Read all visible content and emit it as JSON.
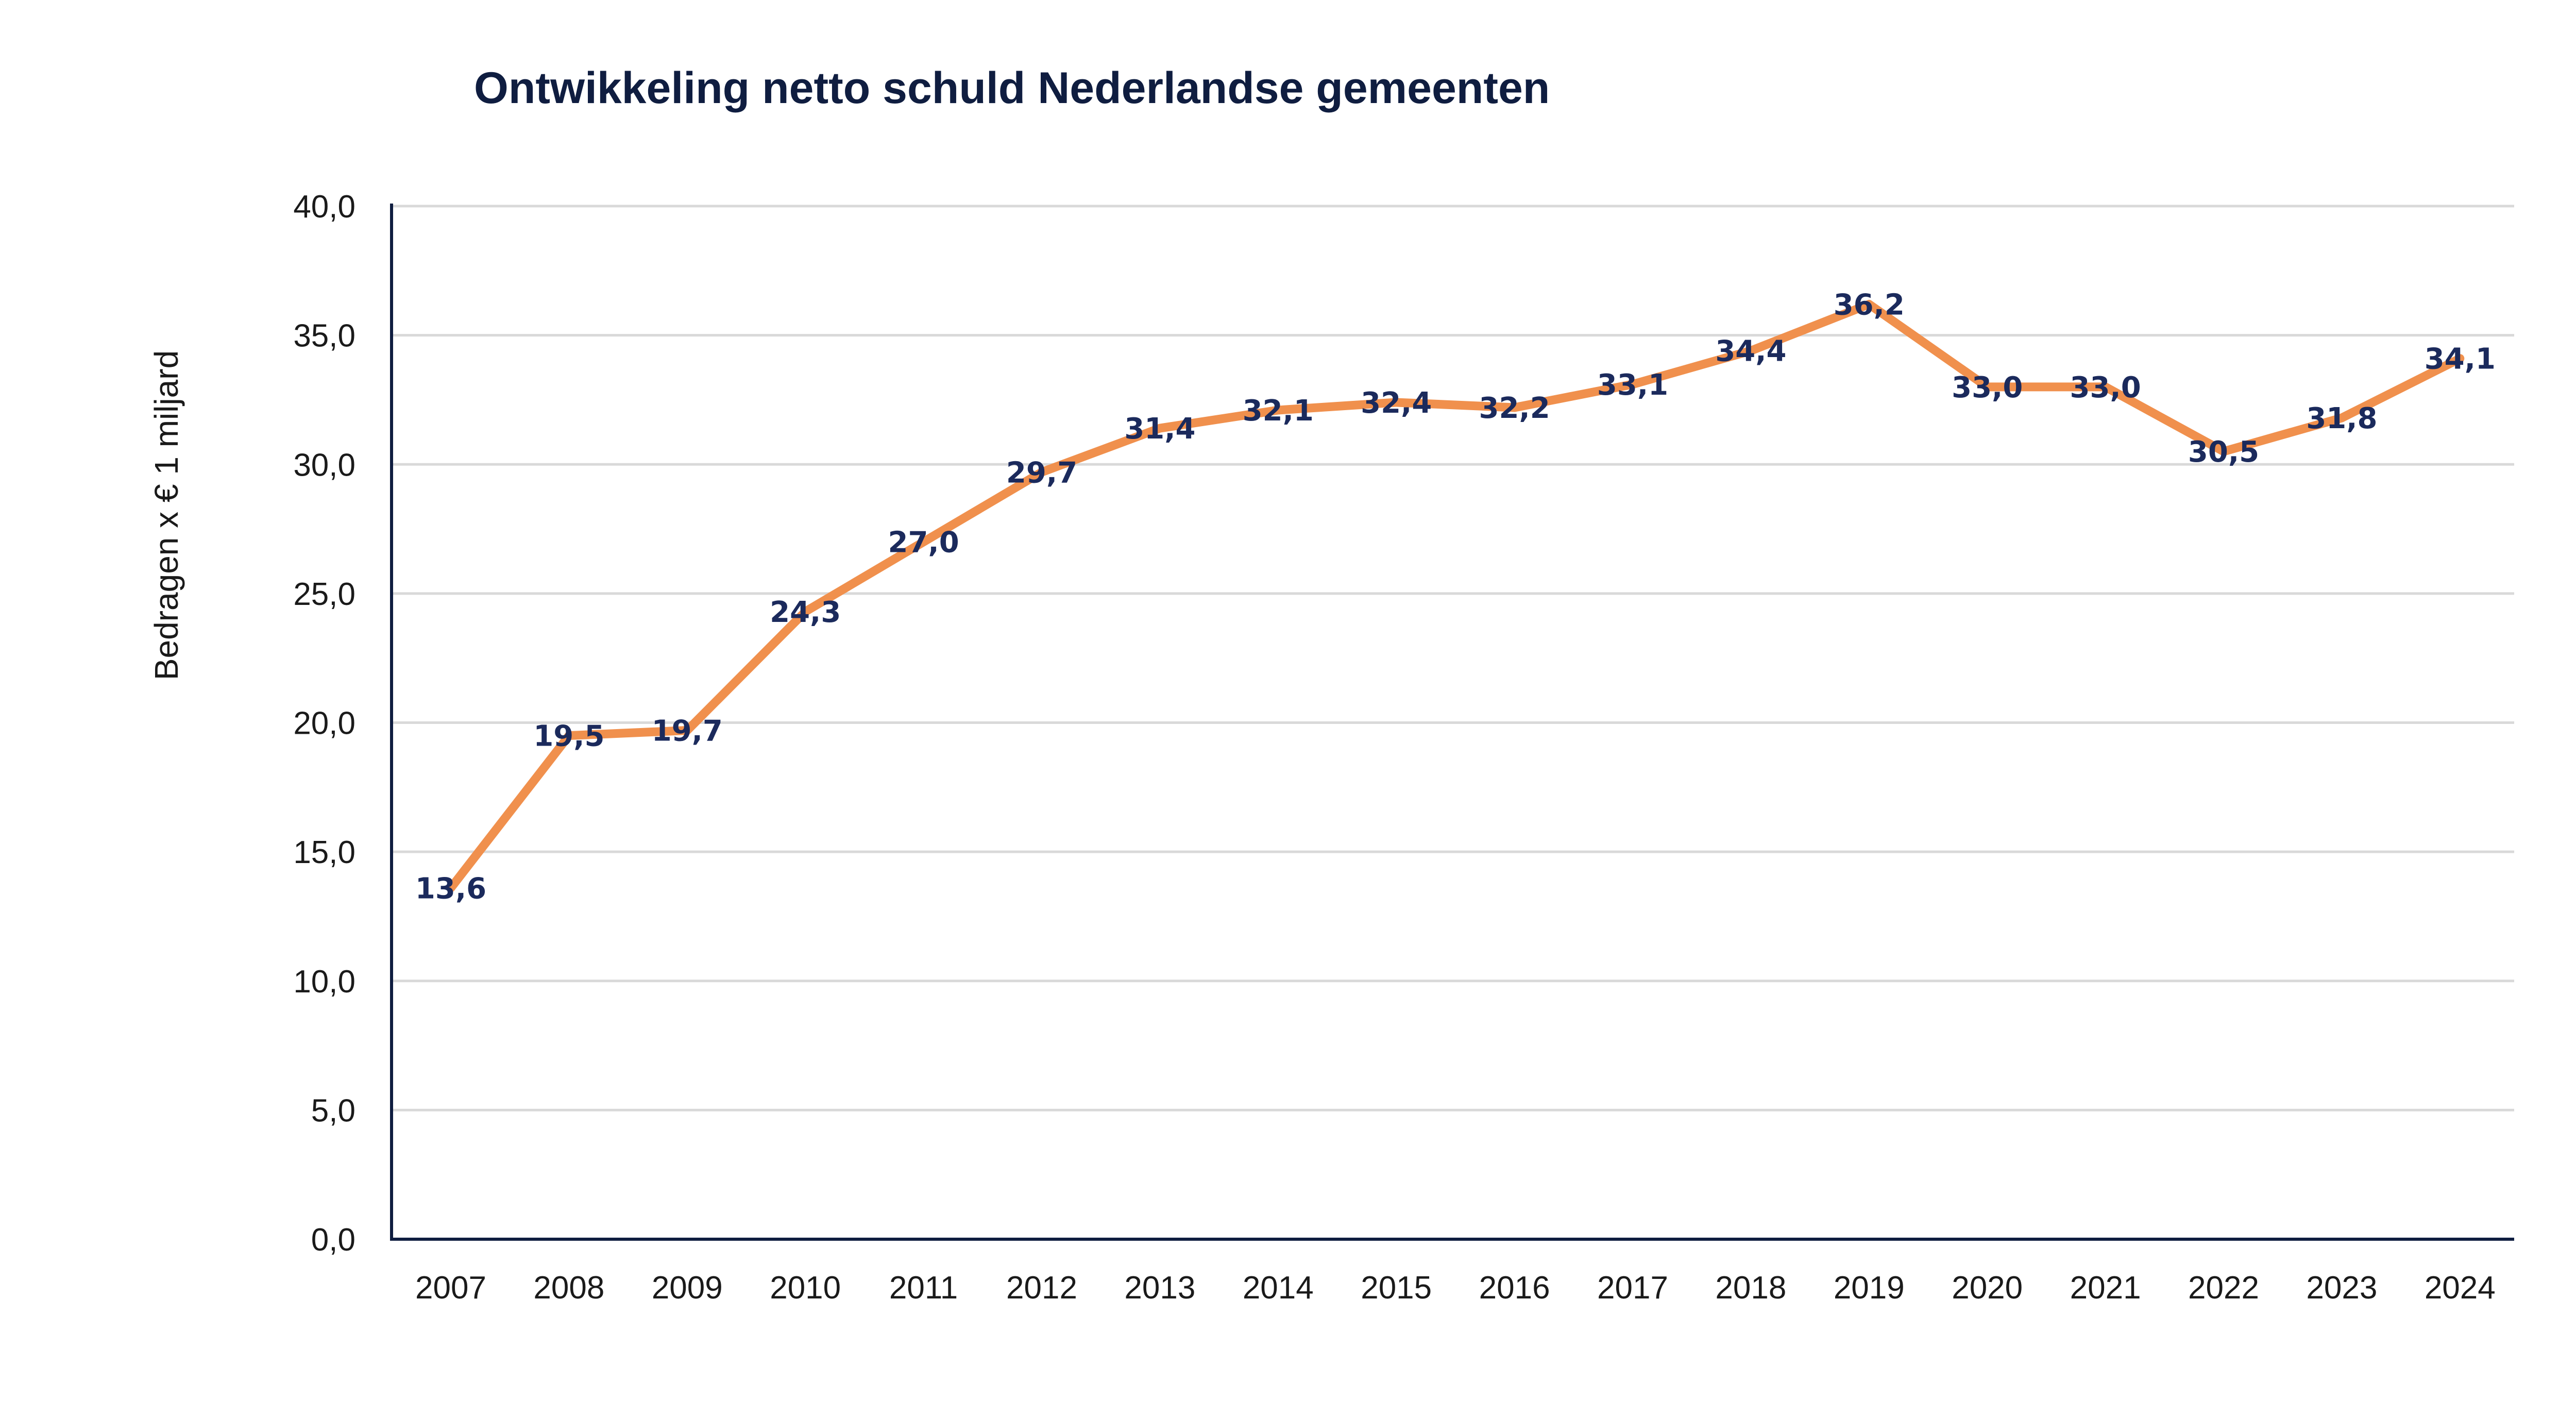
{
  "chart_data": {
    "type": "line",
    "title": "Ontwikkeling netto schuld Nederlandse gemeenten",
    "xlabel": "",
    "ylabel": "Bedragen x € 1 miljard",
    "ylim": [
      0,
      40
    ],
    "yticks": [
      "0,0",
      "5,0",
      "10,0",
      "15,0",
      "20,0",
      "25,0",
      "30,0",
      "35,0",
      "40,0"
    ],
    "grid": true,
    "categories": [
      "2007",
      "2008",
      "2009",
      "2010",
      "2011",
      "2012",
      "2013",
      "2014",
      "2015",
      "2016",
      "2017",
      "2018",
      "2019",
      "2020",
      "2021",
      "2022",
      "2023",
      "2024"
    ],
    "series": [
      {
        "values": [
          13.6,
          19.5,
          19.7,
          24.3,
          27.0,
          29.7,
          31.4,
          32.1,
          32.4,
          32.2,
          33.1,
          34.4,
          36.2,
          33.0,
          33.0,
          30.5,
          31.8,
          34.1
        ],
        "labels": [
          "13,6",
          "19,5",
          "19,7",
          "24,3",
          "27,0",
          "29,7",
          "31,4",
          "32,1",
          "32,4",
          "32,2",
          "33,1",
          "34,4",
          "36,2",
          "33,0",
          "33,0",
          "30,5",
          "31,8",
          "34,1"
        ],
        "color": "#f0904d"
      }
    ]
  }
}
